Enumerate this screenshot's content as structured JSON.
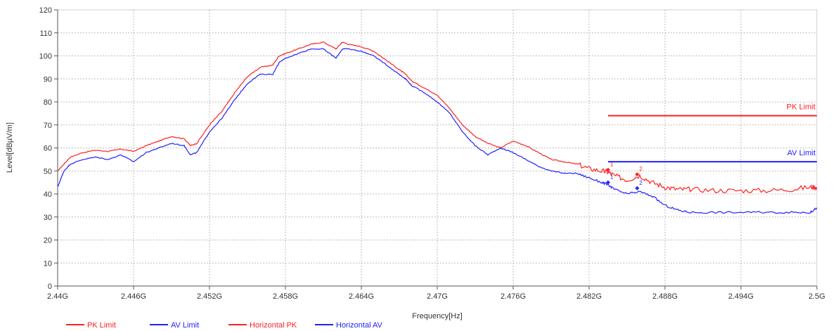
{
  "chart_data": {
    "type": "line",
    "xlabel": "Frequency[Hz]",
    "ylabel": "Level[dBµV/m]",
    "xlim": [
      2.44,
      2.5
    ],
    "ylim": [
      0,
      120
    ],
    "grid": true,
    "legend_position": "bottom-left",
    "x_ticks": [
      {
        "value": 2.44,
        "label": "2.44G"
      },
      {
        "value": 2.446,
        "label": "2.446G"
      },
      {
        "value": 2.452,
        "label": "2.452G"
      },
      {
        "value": 2.458,
        "label": "2.458G"
      },
      {
        "value": 2.464,
        "label": "2.464G"
      },
      {
        "value": 2.47,
        "label": "2.47G"
      },
      {
        "value": 2.476,
        "label": "2.476G"
      },
      {
        "value": 2.482,
        "label": "2.482G"
      },
      {
        "value": 2.488,
        "label": "2.488G"
      },
      {
        "value": 2.494,
        "label": "2.494G"
      },
      {
        "value": 2.5,
        "label": "2.5G"
      }
    ],
    "y_ticks": [
      {
        "value": 0,
        "label": "0"
      },
      {
        "value": 10,
        "label": "10"
      },
      {
        "value": 20,
        "label": "20"
      },
      {
        "value": 30,
        "label": "30"
      },
      {
        "value": 40,
        "label": "40"
      },
      {
        "value": 50,
        "label": "50"
      },
      {
        "value": 60,
        "label": "60"
      },
      {
        "value": 70,
        "label": "70"
      },
      {
        "value": 80,
        "label": "80"
      },
      {
        "value": 90,
        "label": "90"
      },
      {
        "value": 100,
        "label": "100"
      },
      {
        "value": 110,
        "label": "110"
      },
      {
        "value": 120,
        "label": "120"
      }
    ],
    "limit_lines": [
      {
        "name": "PK Limit",
        "label": "PK Limit",
        "value": 74,
        "x_start": 2.4835,
        "x_end": 2.5,
        "color": "#ff2020"
      },
      {
        "name": "AV Limit",
        "label": "AV Limit",
        "value": 54,
        "x_start": 2.4835,
        "x_end": 2.5,
        "color": "#2020ff"
      }
    ],
    "series": [
      {
        "name": "Horizontal PK",
        "color": "#ff2020",
        "x": [
          2.44,
          2.4405,
          2.441,
          2.442,
          2.443,
          2.444,
          2.445,
          2.446,
          2.447,
          2.448,
          2.449,
          2.45,
          2.4505,
          2.451,
          2.452,
          2.453,
          2.454,
          2.455,
          2.456,
          2.457,
          2.4575,
          2.458,
          2.459,
          2.46,
          2.461,
          2.462,
          2.4625,
          2.463,
          2.464,
          2.465,
          2.466,
          2.467,
          2.4675,
          2.468,
          2.469,
          2.47,
          2.471,
          2.472,
          2.473,
          2.474,
          2.475,
          2.476,
          2.477,
          2.478,
          2.479,
          2.48,
          2.481,
          2.482,
          2.483,
          2.4835,
          2.484,
          2.485,
          2.486,
          2.487,
          2.488,
          2.489,
          2.49,
          2.492,
          2.494,
          2.496,
          2.498,
          2.4995,
          2.5
        ],
        "values": [
          50,
          53,
          56,
          58,
          59,
          58.5,
          59.5,
          58.5,
          61,
          63,
          65,
          64,
          61,
          62,
          70,
          76,
          84,
          91,
          95,
          96,
          100,
          101,
          103,
          105,
          106,
          103,
          106,
          105,
          104,
          102,
          98,
          94,
          92,
          89,
          86,
          83,
          77,
          70,
          65,
          62,
          60,
          63,
          61,
          58,
          55,
          54,
          53,
          51,
          50,
          49.5,
          48,
          46,
          48,
          45,
          43,
          42,
          42,
          41.5,
          41.5,
          41.5,
          42,
          43,
          43
        ]
      },
      {
        "name": "Horizontal AV",
        "color": "#2020ff",
        "x": [
          2.44,
          2.4405,
          2.441,
          2.442,
          2.443,
          2.444,
          2.445,
          2.446,
          2.447,
          2.448,
          2.449,
          2.45,
          2.4505,
          2.451,
          2.452,
          2.453,
          2.454,
          2.455,
          2.456,
          2.457,
          2.4575,
          2.458,
          2.459,
          2.46,
          2.461,
          2.462,
          2.4625,
          2.463,
          2.464,
          2.465,
          2.466,
          2.467,
          2.4675,
          2.468,
          2.469,
          2.47,
          2.471,
          2.472,
          2.473,
          2.474,
          2.475,
          2.476,
          2.477,
          2.478,
          2.479,
          2.48,
          2.481,
          2.482,
          2.483,
          2.4835,
          2.484,
          2.485,
          2.486,
          2.487,
          2.488,
          2.489,
          2.49,
          2.492,
          2.494,
          2.496,
          2.498,
          2.4995,
          2.5
        ],
        "values": [
          43,
          50,
          53,
          55,
          56,
          55,
          57,
          54,
          58,
          60,
          62,
          61,
          57,
          58,
          67,
          73,
          81,
          88,
          92,
          92,
          97,
          99,
          101,
          103,
          103,
          99,
          103,
          103,
          102,
          100,
          96,
          92,
          90,
          87,
          84,
          80,
          75,
          67,
          61,
          57,
          60,
          58,
          55,
          52,
          50,
          49,
          49,
          47,
          45,
          44,
          42,
          40,
          41,
          39,
          35,
          33,
          32,
          32,
          32,
          32,
          32,
          32,
          34
        ]
      }
    ],
    "markers": [
      {
        "series": "Horizontal PK",
        "x": 2.4835,
        "y": 50.5,
        "label": "1"
      },
      {
        "series": "Horizontal PK",
        "x": 2.4858,
        "y": 48.5,
        "label": "2"
      },
      {
        "series": "Horizontal AV",
        "x": 2.4835,
        "y": 45,
        "label": "1"
      },
      {
        "series": "Horizontal AV",
        "x": 2.4858,
        "y": 42.5,
        "label": "2"
      }
    ],
    "legend": [
      {
        "label": "PK Limit",
        "color": "#ff2020"
      },
      {
        "label": "AV Limit",
        "color": "#2020ff"
      },
      {
        "label": "Horizontal PK",
        "color": "#ff2020"
      },
      {
        "label": "Horizontal AV",
        "color": "#2020ff"
      }
    ]
  }
}
